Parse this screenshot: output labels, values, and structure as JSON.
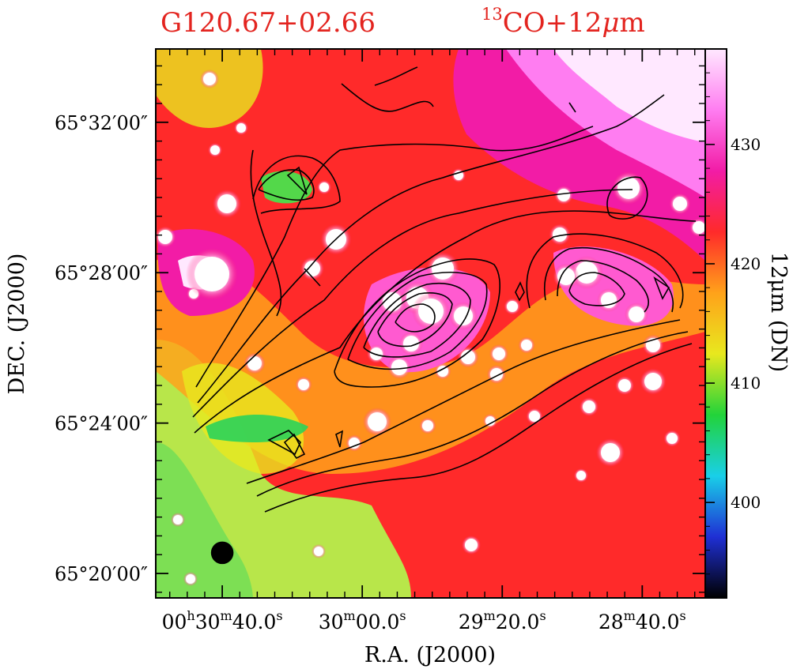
{
  "chart_data": {
    "type": "heatmap",
    "title": "G120.67+02.66",
    "subtitle_sup": "13",
    "subtitle_main": "CO+12",
    "subtitle_mu": "μ",
    "subtitle_end": "m",
    "xlabel": "R.A. (J2000)",
    "ylabel": "DEC. (J2000)",
    "colorbar_label": "12μm (DN)",
    "colorbar_ticks": [
      "400",
      "410",
      "420",
      "430"
    ],
    "colorbar_range": [
      392,
      438
    ],
    "x_ticks": [
      {
        "h": "00",
        "hs": "h",
        "m": "30",
        "ms": "m",
        "s": "40.0",
        "ss": "s",
        "offset_s": 40
      },
      {
        "h": "",
        "hs": "",
        "m": "30",
        "ms": "m",
        "s": "00.0",
        "ss": "s",
        "offset_s": 0
      },
      {
        "h": "",
        "hs": "",
        "m": "29",
        "ms": "m",
        "s": "20.0",
        "ss": "s",
        "offset_s": -40
      },
      {
        "h": "",
        "hs": "",
        "m": "28",
        "ms": "m",
        "s": "40.0",
        "ss": "s",
        "offset_s": -80
      }
    ],
    "y_ticks": [
      {
        "label": "65°32′00″",
        "arcmin": 32
      },
      {
        "label": "65°28′00″",
        "arcmin": 28
      },
      {
        "label": "65°24′00″",
        "arcmin": 24
      },
      {
        "label": "65°20′00″",
        "arcmin": 20
      }
    ],
    "x_range_s": [
      59,
      -98
    ],
    "y_range_arcmin": [
      19.35,
      33.95
    ],
    "beam": {
      "ra_offset_s": 40.0,
      "dec_arcmin": 20.55,
      "diameter_arcmin": 0.6
    },
    "colors": {
      "title": "#e3241f",
      "contour": "#000000",
      "colormap": [
        "#000000",
        "#1f2fd4",
        "#19cfe8",
        "#22d33a",
        "#e8e81e",
        "#ffa21a",
        "#ff2a2a",
        "#f21ca6",
        "#ff7df1",
        "#ffe8ff"
      ]
    }
  }
}
